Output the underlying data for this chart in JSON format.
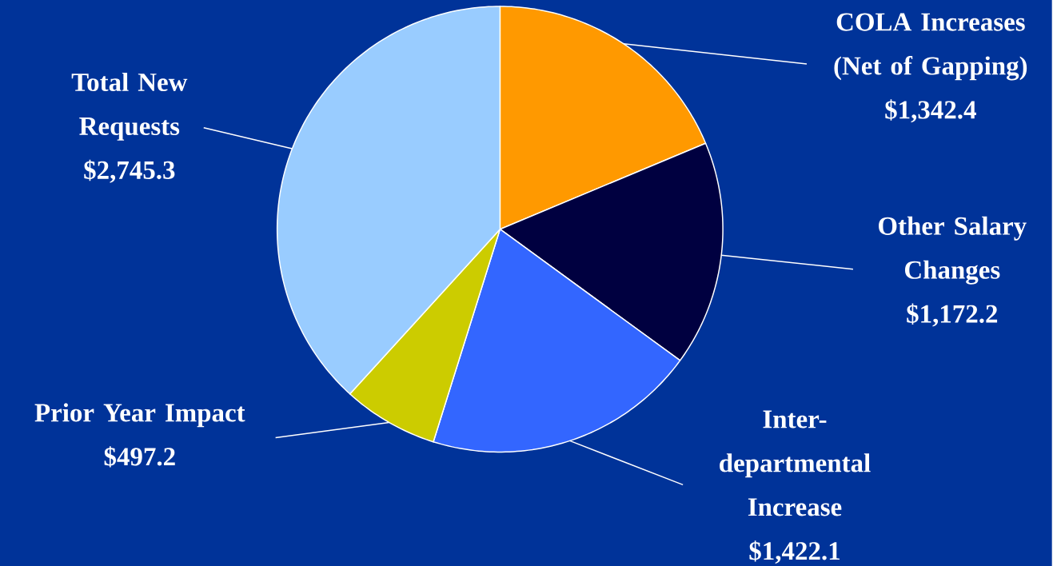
{
  "chart_data": {
    "type": "pie",
    "categories": [
      "COLA Increases (Net of Gapping)",
      "Other Salary Changes",
      "Inter-departmental Increase",
      "Prior Year Impact",
      "Total New Requests"
    ],
    "values": [
      1342.4,
      1172.2,
      1422.1,
      497.2,
      2745.3
    ],
    "value_labels": [
      "$1,342.4",
      "$1,172.2",
      "$1,422.1",
      "$497.2",
      "$2,745.3"
    ],
    "colors": [
      "#ff9900",
      "#000040",
      "#3366ff",
      "#cccc00",
      "#99ccff"
    ]
  }
}
